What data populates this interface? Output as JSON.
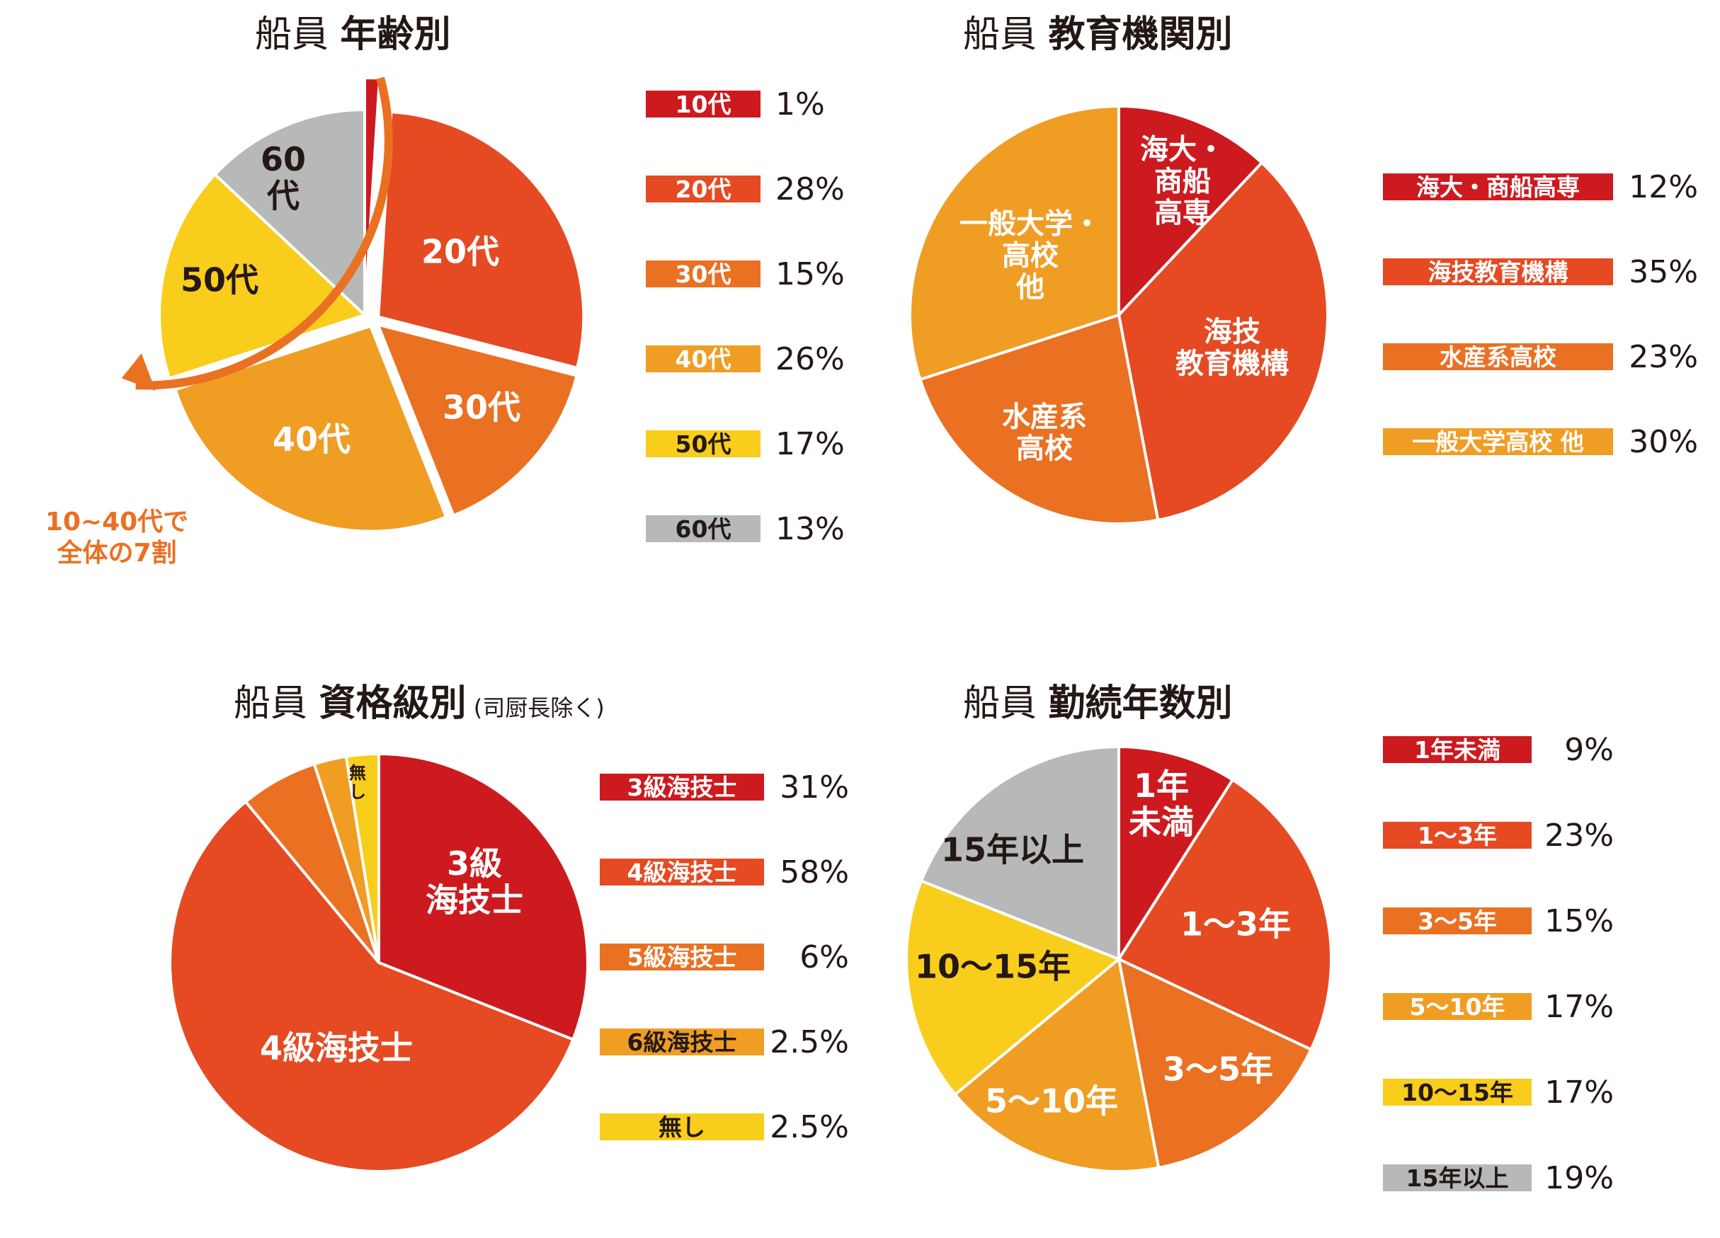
{
  "chart_data": [
    {
      "type": "pie",
      "title_prefix": "船員",
      "title": "年齢別",
      "title_note": "",
      "categories": [
        "10代",
        "20代",
        "30代",
        "40代",
        "50代",
        "60代"
      ],
      "values": [
        1,
        28,
        15,
        26,
        17,
        13
      ],
      "percent_labels": [
        "1%",
        "28%",
        "15%",
        "26%",
        "17%",
        "13%"
      ],
      "slice_labels": [
        "",
        "20代",
        "30代",
        "40代",
        "50代",
        "60\n代"
      ],
      "colors": [
        "#cc1a1f",
        "#e54a22",
        "#ea7022",
        "#f09d24",
        "#f8cd1c",
        "#b7b8b8"
      ],
      "annotation": "10~40代で\n全体の7割",
      "accent": "#ea7022"
    },
    {
      "type": "pie",
      "title_prefix": "船員",
      "title": "教育機関別",
      "title_note": "",
      "categories": [
        "海大・商船高専",
        "海技教育機構",
        "水産系高校",
        "一般大学高校 他"
      ],
      "values": [
        12,
        35,
        23,
        30
      ],
      "percent_labels": [
        "12%",
        "35%",
        "23%",
        "30%"
      ],
      "slice_labels": [
        "海大・\n商船\n高専",
        "海技\n教育機構",
        "水産系\n高校",
        "一般大学・\n高校\n他"
      ],
      "colors": [
        "#cc1a1f",
        "#e54a22",
        "#ea7022",
        "#f09d24"
      ]
    },
    {
      "type": "pie",
      "title_prefix": "船員",
      "title": "資格級別",
      "title_note": "(司厨長除く)",
      "categories": [
        "3級海技士",
        "4級海技士",
        "5級海技士",
        "6級海技士",
        "無し"
      ],
      "values": [
        31,
        58,
        6,
        2.5,
        2.5
      ],
      "percent_labels": [
        "31%",
        "58%",
        "6%",
        "2.5%",
        "2.5%"
      ],
      "slice_labels": [
        "3級\n海技士",
        "4級海技士",
        "",
        "",
        "無\nし"
      ],
      "colors": [
        "#cc1a1f",
        "#e54a22",
        "#ea7022",
        "#f09d24",
        "#f8cd1c"
      ]
    },
    {
      "type": "pie",
      "title_prefix": "船員",
      "title": "勤続年数別",
      "title_note": "",
      "categories": [
        "1年未満",
        "1～3年",
        "3～5年",
        "5～10年",
        "10～15年",
        "15年以上"
      ],
      "values": [
        9,
        23,
        15,
        17,
        17,
        19
      ],
      "percent_labels": [
        "9%",
        "23%",
        "15%",
        "17%",
        "17%",
        "19%"
      ],
      "slice_labels": [
        "1年\n未満",
        "1～3年",
        "3～5年",
        "5～10年",
        "10～15年",
        "15年以上"
      ],
      "colors": [
        "#cc1a1f",
        "#e54a22",
        "#ea7022",
        "#f09d24",
        "#f8cd1c",
        "#b7b8b8"
      ]
    }
  ]
}
